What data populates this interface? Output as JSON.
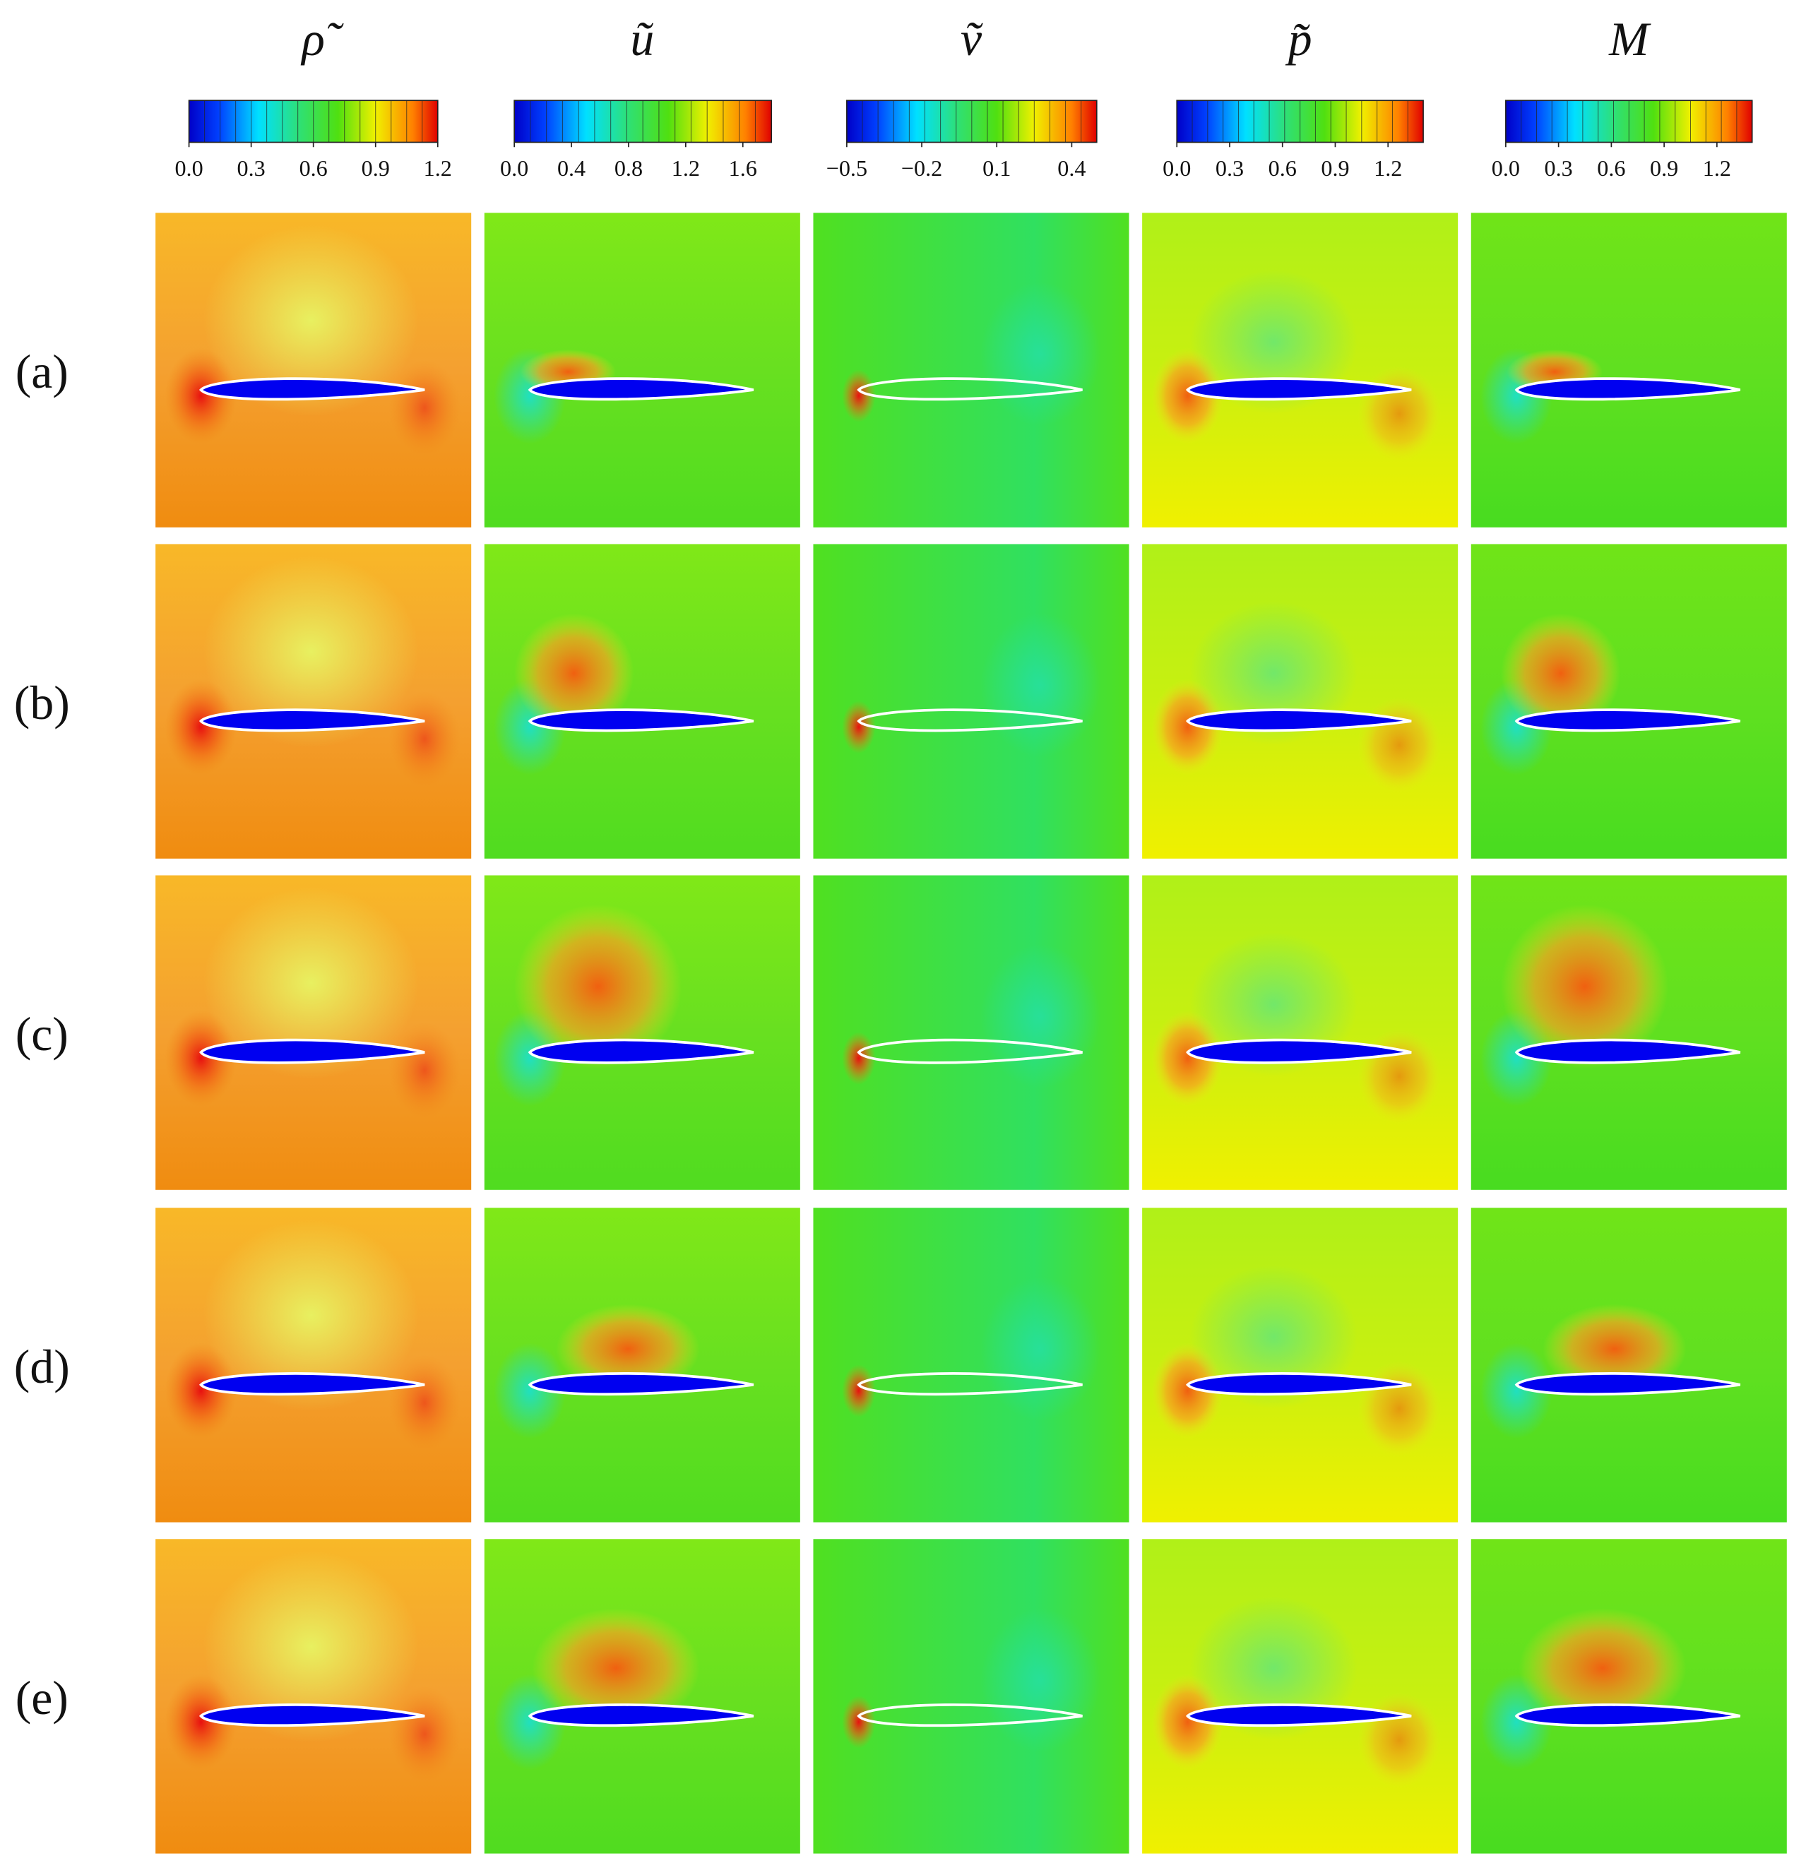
{
  "columns": [
    {
      "title": "ρ̃",
      "colorbar": {
        "range": [
          0,
          1.2
        ],
        "ticks": [
          {
            "value": 0,
            "label": "0.0"
          },
          {
            "value": 0.3,
            "label": "0.3"
          },
          {
            "value": 0.6,
            "label": "0.6"
          },
          {
            "value": 0.9,
            "label": "0.9"
          },
          {
            "value": 1.2,
            "label": "1.2"
          }
        ]
      }
    },
    {
      "title": "ũ",
      "colorbar": {
        "range": [
          0,
          1.8
        ],
        "ticks": [
          {
            "value": 0,
            "label": "0.0"
          },
          {
            "value": 0.4,
            "label": "0.4"
          },
          {
            "value": 0.8,
            "label": "0.8"
          },
          {
            "value": 1.2,
            "label": "1.2"
          },
          {
            "value": 1.6,
            "label": "1.6"
          }
        ]
      }
    },
    {
      "title": "ṽ",
      "colorbar": {
        "range": [
          -0.5,
          0.5
        ],
        "ticks": [
          {
            "value": -0.5,
            "label": "−0.5"
          },
          {
            "value": -0.2,
            "label": "−0.2"
          },
          {
            "value": 0.1,
            "label": "0.1"
          },
          {
            "value": 0.4,
            "label": "0.4"
          }
        ]
      }
    },
    {
      "title": "p̃",
      "colorbar": {
        "range": [
          0,
          1.4
        ],
        "ticks": [
          {
            "value": 0,
            "label": "0.0"
          },
          {
            "value": 0.3,
            "label": "0.3"
          },
          {
            "value": 0.6,
            "label": "0.6"
          },
          {
            "value": 0.9,
            "label": "0.9"
          },
          {
            "value": 1.2,
            "label": "1.2"
          }
        ]
      }
    },
    {
      "title": "M",
      "colorbar": {
        "range": [
          0,
          1.4
        ],
        "ticks": [
          {
            "value": 0,
            "label": "0.0"
          },
          {
            "value": 0.3,
            "label": "0.3"
          },
          {
            "value": 0.6,
            "label": "0.6"
          },
          {
            "value": 0.9,
            "label": "0.9"
          },
          {
            "value": 1.2,
            "label": "1.2"
          }
        ]
      }
    }
  ],
  "rows": [
    "(a)",
    "(b)",
    "(c)",
    "(d)",
    "(e)"
  ]
}
